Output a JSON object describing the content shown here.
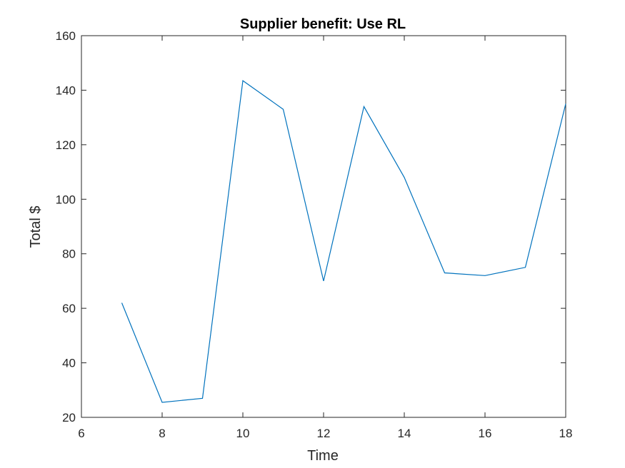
{
  "chart_data": {
    "type": "line",
    "title": "Supplier benefit: Use RL",
    "xlabel": "Time",
    "ylabel": "Total $",
    "xlim": [
      6,
      18
    ],
    "ylim": [
      20,
      160
    ],
    "xticks": [
      6,
      8,
      10,
      12,
      14,
      16,
      18
    ],
    "yticks": [
      20,
      40,
      60,
      80,
      100,
      120,
      140,
      160
    ],
    "grid": false,
    "box": true,
    "line_color": "#0072BD",
    "axis_color": "#262626",
    "series": [
      {
        "x": [
          7,
          8,
          9,
          10,
          11,
          12,
          13,
          14,
          15,
          16,
          17,
          18
        ],
        "y": [
          62,
          25.5,
          27,
          143.5,
          133,
          70,
          134,
          108,
          73,
          72,
          75,
          135
        ]
      }
    ]
  }
}
